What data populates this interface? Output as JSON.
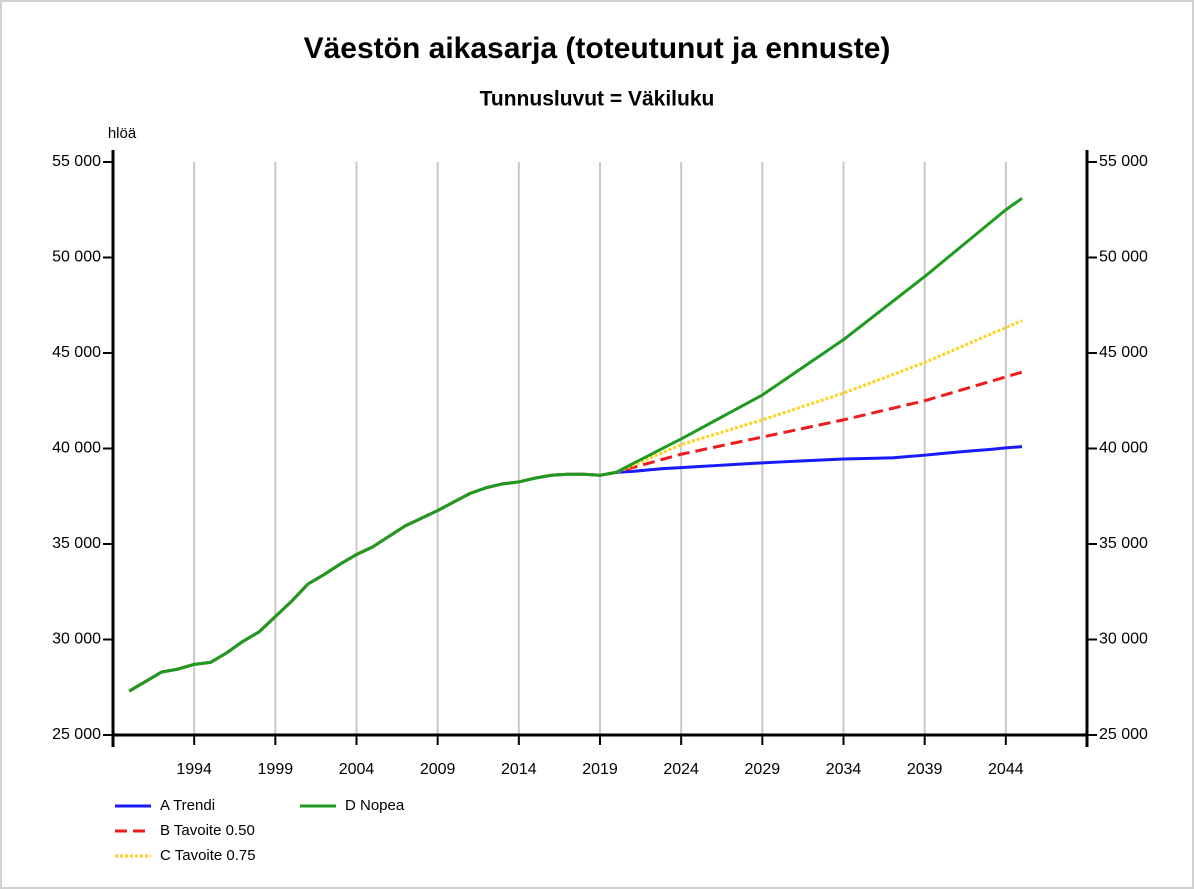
{
  "chart_data": {
    "type": "line",
    "title": "Väestön aikasarja (toteutunut ja ennuste)",
    "subtitle": "Tunnusluvut = Väkiluku",
    "y_label": "hlöä",
    "x": [
      1990,
      1991,
      1992,
      1993,
      1994,
      1995,
      1996,
      1997,
      1998,
      1999,
      2000,
      2001,
      2002,
      2003,
      2004,
      2005,
      2006,
      2007,
      2008,
      2009,
      2010,
      2011,
      2012,
      2013,
      2014,
      2015,
      2016,
      2017,
      2018,
      2019,
      2020,
      2021,
      2022,
      2023,
      2024,
      2025,
      2026,
      2027,
      2028,
      2029,
      2030,
      2031,
      2032,
      2033,
      2034,
      2035,
      2036,
      2037,
      2038,
      2039,
      2040,
      2041,
      2042,
      2043,
      2044,
      2045
    ],
    "xlim": [
      1989,
      2049
    ],
    "xticks": [
      1994,
      1999,
      2004,
      2009,
      2014,
      2019,
      2024,
      2029,
      2034,
      2039,
      2044
    ],
    "ylim": [
      25000,
      55000
    ],
    "yticks": [
      {
        "value": 25000,
        "label": "25 000"
      },
      {
        "value": 30000,
        "label": "30 000"
      },
      {
        "value": 35000,
        "label": "35 000"
      },
      {
        "value": 40000,
        "label": "40 000"
      },
      {
        "value": 45000,
        "label": "45 000"
      },
      {
        "value": 50000,
        "label": "50 000"
      },
      {
        "value": 55000,
        "label": "55 000"
      }
    ],
    "grid": true,
    "series": [
      {
        "name": "A Trendi",
        "color": "#1a1aff",
        "dash": "solid",
        "values": [
          27300,
          27800,
          28300,
          28450,
          28700,
          28800,
          29300,
          29900,
          30400,
          31200,
          32000,
          32900,
          33400,
          33950,
          34450,
          34850,
          35400,
          35950,
          36350,
          36750,
          37200,
          37650,
          37950,
          38150,
          38250,
          38450,
          38600,
          38650,
          38650,
          38600,
          38750,
          38800,
          38880,
          38950,
          39000,
          39050,
          39100,
          39150,
          39200,
          39250,
          39290,
          39330,
          39370,
          39410,
          39450,
          39470,
          39490,
          39510,
          39580,
          39650,
          39730,
          39810,
          39880,
          39950,
          40030,
          40100
        ]
      },
      {
        "name": "B Tavoite 0.50",
        "color": "#ee1c1c",
        "dash": "dashed",
        "values": [
          27300,
          27800,
          28300,
          28450,
          28700,
          28800,
          29300,
          29900,
          30400,
          31200,
          32000,
          32900,
          33400,
          33950,
          34450,
          34850,
          35400,
          35950,
          36350,
          36750,
          37200,
          37650,
          37950,
          38150,
          38250,
          38450,
          38600,
          38650,
          38650,
          38600,
          38750,
          39000,
          39230,
          39470,
          39700,
          39880,
          40060,
          40240,
          40420,
          40600,
          40780,
          40960,
          41140,
          41320,
          41500,
          41700,
          41900,
          42100,
          42300,
          42500,
          42750,
          43000,
          43250,
          43500,
          43750,
          44000
        ]
      },
      {
        "name": "C Tavoite 0.75",
        "color": "#ffd21a",
        "dash": "dotted",
        "values": [
          27300,
          27800,
          28300,
          28450,
          28700,
          28800,
          29300,
          29900,
          30400,
          31200,
          32000,
          32900,
          33400,
          33950,
          34450,
          34850,
          35400,
          35950,
          36350,
          36750,
          37200,
          37650,
          37950,
          38150,
          38250,
          38450,
          38600,
          38650,
          38650,
          38600,
          38750,
          39100,
          39470,
          39830,
          40200,
          40460,
          40720,
          40980,
          41240,
          41500,
          41780,
          42060,
          42340,
          42620,
          42900,
          43220,
          43540,
          43860,
          44180,
          44500,
          44870,
          45230,
          45600,
          45970,
          46330,
          46700
        ]
      },
      {
        "name": "D Nopea",
        "color": "#1e9a1e",
        "dash": "solid",
        "values": [
          27300,
          27800,
          28300,
          28450,
          28700,
          28800,
          29300,
          29900,
          30400,
          31200,
          32000,
          32900,
          33400,
          33950,
          34450,
          34850,
          35400,
          35950,
          36350,
          36750,
          37200,
          37650,
          37950,
          38150,
          38250,
          38450,
          38600,
          38650,
          38650,
          38600,
          38750,
          39200,
          39630,
          40070,
          40500,
          40960,
          41420,
          41880,
          42340,
          42800,
          43380,
          43960,
          44540,
          45120,
          45700,
          46360,
          47020,
          47680,
          48340,
          49000,
          49700,
          50400,
          51100,
          51800,
          52500,
          53100
        ]
      }
    ]
  }
}
